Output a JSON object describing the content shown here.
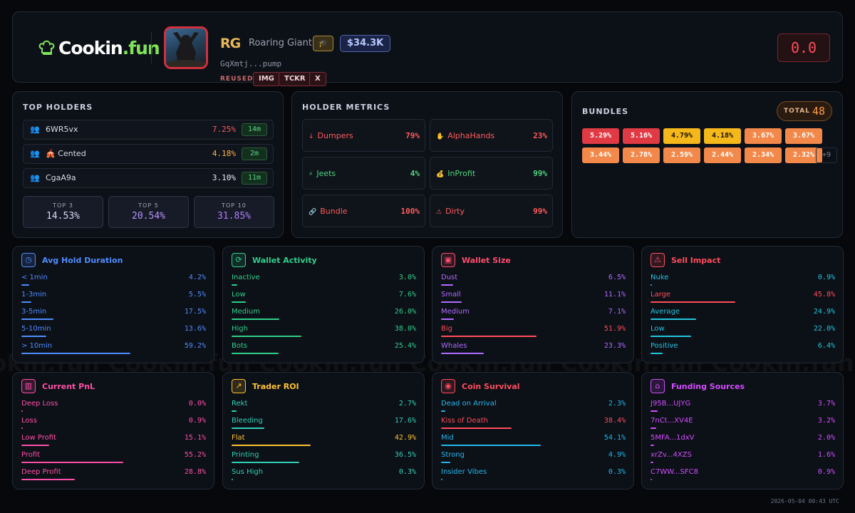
{
  "header": {
    "logo_text_main": "Cookin",
    "logo_text_accent": ".fun",
    "token_symbol": "RG",
    "token_name": "Roaring Giant",
    "grad_icon": "graduation-cap-icon",
    "market_cap": "$34.3K",
    "address": "GqXmtj...pump",
    "reused_label": "REUSED:",
    "reused_tags": [
      "IMG",
      "TCKR",
      "X"
    ],
    "score": "0.0"
  },
  "top_holders": {
    "title": "TOP HOLDERS",
    "rows": [
      {
        "icon": "users-icon",
        "name": "6WR5vx",
        "pct": "7.25%",
        "time": "14m",
        "color": "#ff5a5a"
      },
      {
        "icon": "users-icon",
        "prefix": "🎪",
        "name": "Cented",
        "pct": "4.18%",
        "time": "2m",
        "color": "#ffb347"
      },
      {
        "icon": "users-icon",
        "name": "CgaA9a",
        "pct": "3.10%",
        "time": "11m",
        "color": "#e8ecf2"
      }
    ],
    "tops": [
      {
        "label": "TOP 3",
        "value": "14.53%",
        "color": "#dcd6f5"
      },
      {
        "label": "TOP 5",
        "value": "20.54%",
        "color": "#b892ff"
      },
      {
        "label": "TOP 10",
        "value": "31.85%",
        "color": "#b07cff"
      }
    ]
  },
  "holder_metrics": {
    "title": "HOLDER METRICS",
    "items": [
      {
        "icon": "↓",
        "label": "Dumpers",
        "value": "79%",
        "color": "#ff5a5a",
        "vcolor": "#ff5a5a"
      },
      {
        "icon": "✋",
        "label": "AlphaHands",
        "value": "23%",
        "color": "#ff5a5a",
        "vcolor": "#ff5a5a"
      },
      {
        "icon": "⚡",
        "label": "Jeets",
        "value": "4%",
        "color": "#4ed47a",
        "vcolor": "#4ed47a"
      },
      {
        "icon": "💰",
        "label": "InProfit",
        "value": "99%",
        "color": "#4ed47a",
        "vcolor": "#4ed47a"
      },
      {
        "icon": "🔗",
        "label": "Bundle",
        "value": "100%",
        "color": "#ff5a5a",
        "vcolor": "#ff5a5a"
      },
      {
        "icon": "⚠",
        "label": "Dirty",
        "value": "99%",
        "color": "#ff5a5a",
        "vcolor": "#ff5a5a"
      }
    ]
  },
  "bundles": {
    "title": "BUNDLES",
    "total_label": "TOTAL",
    "total_value": "48",
    "chips": [
      {
        "v": "5.29%",
        "bg": "#e03a45",
        "fg": "#fff"
      },
      {
        "v": "5.16%",
        "bg": "#e03a45",
        "fg": "#fff"
      },
      {
        "v": "4.79%",
        "bg": "#f4b81a",
        "fg": "#1a1305"
      },
      {
        "v": "4.18%",
        "bg": "#f4b81a",
        "fg": "#1a1305"
      },
      {
        "v": "3.67%",
        "bg": "#f2894a",
        "fg": "#fff"
      },
      {
        "v": "3.67%",
        "bg": "#f2894a",
        "fg": "#fff"
      },
      {
        "v": "3.44%",
        "bg": "#f2894a",
        "fg": "#fff"
      },
      {
        "v": "2.78%",
        "bg": "#f2894a",
        "fg": "#fff"
      },
      {
        "v": "2.59%",
        "bg": "#f2894a",
        "fg": "#fff"
      },
      {
        "v": "2.44%",
        "bg": "#f2894a",
        "fg": "#fff"
      },
      {
        "v": "2.34%",
        "bg": "#f2894a",
        "fg": "#fff"
      },
      {
        "v": "2.32%",
        "bg": "#f2894a",
        "fg": "#fff"
      }
    ],
    "more": "+9"
  },
  "cards": [
    {
      "title": "Avg Hold Duration",
      "icon": "◷",
      "icon_name": "clock-icon",
      "color": "#4f8dff",
      "rows": [
        {
          "label": "< 1min",
          "value": "4.2%",
          "pct": 4.2,
          "color": "#4f8dff"
        },
        {
          "label": "1-3min",
          "value": "5.5%",
          "pct": 5.5,
          "color": "#4f8dff"
        },
        {
          "label": "3-5min",
          "value": "17.5%",
          "pct": 17.5,
          "color": "#4f8dff"
        },
        {
          "label": "5-10min",
          "value": "13.6%",
          "pct": 13.6,
          "color": "#4f8dff"
        },
        {
          "label": "> 10min",
          "value": "59.2%",
          "pct": 59.2,
          "color": "#4f8dff"
        }
      ]
    },
    {
      "title": "Wallet Activity",
      "icon": "⟳",
      "icon_name": "refresh-icon",
      "color": "#2fcf8a",
      "rows": [
        {
          "label": "Inactive",
          "value": "3.0%",
          "pct": 3.0,
          "color": "#2fcf8a"
        },
        {
          "label": "Low",
          "value": "7.6%",
          "pct": 7.6,
          "color": "#2fcf8a"
        },
        {
          "label": "Medium",
          "value": "26.0%",
          "pct": 26.0,
          "color": "#2fcf8a"
        },
        {
          "label": "High",
          "value": "38.0%",
          "pct": 38.0,
          "color": "#2fcf8a"
        },
        {
          "label": "Bots",
          "value": "25.4%",
          "pct": 25.4,
          "color": "#2fcf8a"
        }
      ]
    },
    {
      "title": "Wallet Size",
      "icon": "▣",
      "icon_name": "wallet-icon",
      "color": "#ff4d6d",
      "rows": [
        {
          "label": "Dust",
          "value": "6.5%",
          "pct": 6.5,
          "color": "#b06cff"
        },
        {
          "label": "Small",
          "value": "11.1%",
          "pct": 11.1,
          "color": "#b06cff"
        },
        {
          "label": "Medium",
          "value": "7.1%",
          "pct": 7.1,
          "color": "#b06cff"
        },
        {
          "label": "Big",
          "value": "51.9%",
          "pct": 51.9,
          "color": "#ff4d5b"
        },
        {
          "label": "Whales",
          "value": "23.3%",
          "pct": 23.3,
          "color": "#b06cff"
        }
      ]
    },
    {
      "title": "Sell Impact",
      "icon": "⚠",
      "icon_name": "warning-icon",
      "color": "#ff4d5b",
      "rows": [
        {
          "label": "Nuke",
          "value": "0.9%",
          "pct": 0.9,
          "color": "#22c6e0"
        },
        {
          "label": "Large",
          "value": "45.8%",
          "pct": 45.8,
          "color": "#ff4d5b"
        },
        {
          "label": "Average",
          "value": "24.9%",
          "pct": 24.9,
          "color": "#22c6e0"
        },
        {
          "label": "Low",
          "value": "22.0%",
          "pct": 22.0,
          "color": "#22c6e0"
        },
        {
          "label": "Positive",
          "value": "6.4%",
          "pct": 6.4,
          "color": "#22c6e0"
        }
      ]
    },
    {
      "title": "Current PnL",
      "icon": "▥",
      "icon_name": "bar-chart-icon",
      "color": "#ff4fa8",
      "rows": [
        {
          "label": "Deep Loss",
          "value": "0.0%",
          "pct": 0.0,
          "color": "#ff4fa8"
        },
        {
          "label": "Loss",
          "value": "0.9%",
          "pct": 0.9,
          "color": "#ff4fa8"
        },
        {
          "label": "Low Profit",
          "value": "15.1%",
          "pct": 15.1,
          "color": "#ff4fa8"
        },
        {
          "label": "Profit",
          "value": "55.2%",
          "pct": 55.2,
          "color": "#ff4fa8"
        },
        {
          "label": "Deep Profit",
          "value": "28.8%",
          "pct": 28.8,
          "color": "#ff4fa8"
        }
      ]
    },
    {
      "title": "Trader ROI",
      "icon": "↗",
      "icon_name": "trending-up-icon",
      "color": "#ffc233",
      "rows": [
        {
          "label": "Rekt",
          "value": "2.7%",
          "pct": 2.7,
          "color": "#2fd0b8"
        },
        {
          "label": "Bleeding",
          "value": "17.6%",
          "pct": 17.6,
          "color": "#2fd0b8"
        },
        {
          "label": "Flat",
          "value": "42.9%",
          "pct": 42.9,
          "color": "#ffc233"
        },
        {
          "label": "Printing",
          "value": "36.5%",
          "pct": 36.5,
          "color": "#2fd0b8"
        },
        {
          "label": "Sus High",
          "value": "0.3%",
          "pct": 0.3,
          "color": "#2fd0b8"
        }
      ]
    },
    {
      "title": "Coin Survival",
      "icon": "◉",
      "icon_name": "radio-icon",
      "color": "#ff4d5b",
      "rows": [
        {
          "label": "Dead on Arrival",
          "value": "2.3%",
          "pct": 2.3,
          "color": "#22b8ec"
        },
        {
          "label": "Kiss of Death",
          "value": "38.4%",
          "pct": 38.4,
          "color": "#ff4d5b"
        },
        {
          "label": "Mid",
          "value": "54.1%",
          "pct": 54.1,
          "color": "#22b8ec"
        },
        {
          "label": "Strong",
          "value": "4.9%",
          "pct": 4.9,
          "color": "#22b8ec"
        },
        {
          "label": "Insider Vibes",
          "value": "0.3%",
          "pct": 0.3,
          "color": "#22b8ec"
        }
      ]
    },
    {
      "title": "Funding Sources",
      "icon": "⌂",
      "icon_name": "bank-icon",
      "color": "#d34dff",
      "rows": [
        {
          "label": "J95B...UJYG",
          "value": "3.7%",
          "pct": 3.7,
          "color": "#d34dff"
        },
        {
          "label": "7nCt...XV4E",
          "value": "3.2%",
          "pct": 3.2,
          "color": "#d34dff"
        },
        {
          "label": "5MFA...1dxV",
          "value": "2.0%",
          "pct": 2.0,
          "color": "#d34dff"
        },
        {
          "label": "xrZv...4XZS",
          "value": "1.6%",
          "pct": 1.6,
          "color": "#d34dff"
        },
        {
          "label": "C7WW...SFC8",
          "value": "0.9%",
          "pct": 0.9,
          "color": "#d34dff"
        }
      ]
    }
  ],
  "watermark": "Cookin.fun",
  "timestamp": "2026-05-04 00:43 UTC"
}
